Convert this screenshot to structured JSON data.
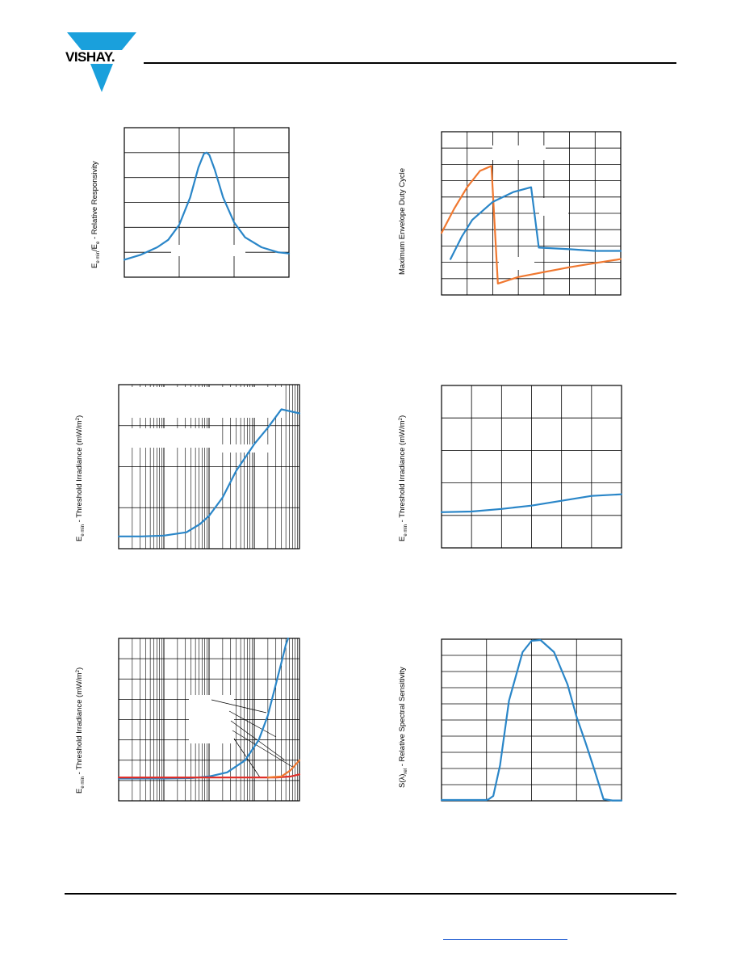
{
  "brand": {
    "logo_text": "VISHAY.",
    "logo_color": "#1aa0dc"
  },
  "colors": {
    "series_blue": "#2a86c8",
    "series_orange": "#f07830",
    "series_red": "#e0302a",
    "grid": "#000000",
    "link": "#1e5bd1"
  },
  "chart_data": [
    {
      "id": "responsivity",
      "type": "line",
      "ylabel_main": "E",
      "ylabel_parts": [
        "e min",
        "/E",
        "e",
        " - Relative Responsivity"
      ],
      "grid": true,
      "x_divisions": 3,
      "y_divisions": 6,
      "xlim": [
        0,
        3
      ],
      "ylim": [
        0,
        6
      ],
      "series": [
        {
          "color": "blue",
          "x": [
            0,
            0.3,
            0.6,
            0.8,
            1.0,
            1.2,
            1.35,
            1.45,
            1.5,
            1.55,
            1.65,
            1.8,
            2.0,
            2.2,
            2.5,
            2.8,
            3.0
          ],
          "y": [
            0.7,
            0.9,
            1.2,
            1.5,
            2.1,
            3.2,
            4.4,
            4.95,
            5.0,
            4.9,
            4.3,
            3.2,
            2.2,
            1.6,
            1.2,
            1.0,
            0.95
          ]
        }
      ]
    },
    {
      "id": "duty_cycle",
      "type": "line",
      "ylabel": "Maximum Envelope Duty Cycle",
      "grid": true,
      "x_divisions": 7,
      "y_divisions": 10,
      "xlim": [
        0,
        7
      ],
      "ylim": [
        0,
        10
      ],
      "series": [
        {
          "color": "orange",
          "x": [
            0,
            0.5,
            1.0,
            1.5,
            1.95,
            2.2,
            3.0,
            4.0,
            5.0,
            6.0,
            7.0
          ],
          "y": [
            3.8,
            5.3,
            6.6,
            7.6,
            7.9,
            0.7,
            1.1,
            1.4,
            1.7,
            1.95,
            2.2
          ]
        },
        {
          "color": "blue",
          "x": [
            0.35,
            0.8,
            1.2,
            2.0,
            2.8,
            3.5,
            3.8,
            5.0,
            6.0,
            7.0
          ],
          "y": [
            2.2,
            3.6,
            4.6,
            5.7,
            6.3,
            6.6,
            2.9,
            2.8,
            2.7,
            2.7
          ]
        }
      ]
    },
    {
      "id": "threshold_log",
      "type": "line",
      "ylabel_main": "E",
      "ylabel_parts": [
        "e min",
        " - Threshold Irradiance (mW/m",
        "2",
        ")"
      ],
      "grid": true,
      "x_scale": "log",
      "x_decades": 4,
      "y_divisions": 4,
      "xlim": [
        0,
        4
      ],
      "ylim": [
        0,
        4
      ],
      "series": [
        {
          "color": "blue",
          "x": [
            0,
            0.5,
            1.0,
            1.5,
            1.8,
            2.0,
            2.3,
            2.6,
            3.0,
            3.3,
            3.6,
            4.0
          ],
          "y": [
            0.3,
            0.3,
            0.32,
            0.4,
            0.6,
            0.8,
            1.25,
            1.9,
            2.55,
            2.95,
            3.4,
            3.3
          ]
        }
      ]
    },
    {
      "id": "threshold_linear",
      "type": "line",
      "ylabel_main": "E",
      "ylabel_parts": [
        "e min",
        " - Threshold Irradiance (mW/m",
        "2",
        ")"
      ],
      "grid": true,
      "x_divisions": 6,
      "y_divisions": 5,
      "xlim": [
        0,
        6
      ],
      "ylim": [
        0,
        5
      ],
      "series": [
        {
          "color": "blue",
          "x": [
            0,
            1,
            2,
            3,
            4,
            5,
            6
          ],
          "y": [
            1.1,
            1.12,
            1.2,
            1.3,
            1.45,
            1.6,
            1.65
          ]
        }
      ]
    },
    {
      "id": "threshold_log_multi",
      "type": "line",
      "ylabel_main": "E",
      "ylabel_parts": [
        "e min",
        " - Threshold Irradiance (mW/m",
        "2",
        ")"
      ],
      "grid": true,
      "x_scale": "log",
      "x_decades": 4,
      "y_divisions": 8,
      "xlim": [
        0,
        4
      ],
      "ylim": [
        0,
        8
      ],
      "series": [
        {
          "color": "blue",
          "x": [
            0,
            1.0,
            1.6,
            2.0,
            2.4,
            2.8,
            3.1,
            3.3,
            3.45,
            3.6,
            3.7,
            3.75
          ],
          "y": [
            1.1,
            1.1,
            1.12,
            1.2,
            1.4,
            2.0,
            3.0,
            4.2,
            5.5,
            6.8,
            7.7,
            8.0
          ]
        },
        {
          "color": "red",
          "x": [
            0,
            1.0,
            2.0,
            3.0,
            3.5,
            3.8,
            4.0
          ],
          "y": [
            1.15,
            1.15,
            1.15,
            1.15,
            1.15,
            1.2,
            1.3
          ]
        },
        {
          "color": "orange",
          "x": [
            3.3,
            3.6,
            3.8,
            4.0
          ],
          "y": [
            1.15,
            1.2,
            1.5,
            2.0
          ]
        }
      ]
    },
    {
      "id": "spectral",
      "type": "line",
      "ylabel_main": "S(λ)",
      "ylabel_parts": [
        "rel",
        " - Relative Spectral Sensitivity"
      ],
      "grid": true,
      "x_divisions": 4,
      "y_divisions": 10,
      "xlim": [
        0,
        4
      ],
      "ylim": [
        0,
        10
      ],
      "series": [
        {
          "color": "blue",
          "x": [
            0,
            0.5,
            1.0,
            1.05,
            1.15,
            1.3,
            1.5,
            1.8,
            2.0,
            2.2,
            2.5,
            2.8,
            3.0,
            3.2,
            3.4,
            3.6,
            3.8,
            4.0
          ],
          "y": [
            0.05,
            0.05,
            0.05,
            0.1,
            0.3,
            2.2,
            6.2,
            9.2,
            9.9,
            9.95,
            9.2,
            7.2,
            5.2,
            3.6,
            1.9,
            0.1,
            0.02,
            0.02
          ]
        }
      ]
    }
  ]
}
